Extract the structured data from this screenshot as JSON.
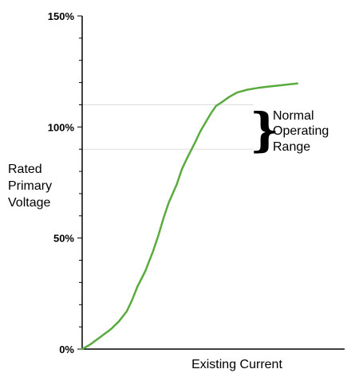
{
  "chart_data": {
    "type": "line",
    "title": "",
    "xlabel": "Existing Current",
    "ylabel_lines": [
      "Rated",
      "Primary",
      "Voltage"
    ],
    "ylim": [
      0,
      150
    ],
    "xlim": [
      0,
      100
    ],
    "y_ticks": [
      {
        "value": 0,
        "label": "0%"
      },
      {
        "value": 50,
        "label": "50%"
      },
      {
        "value": 100,
        "label": "100%"
      },
      {
        "value": 150,
        "label": "150%"
      }
    ],
    "y_minor_step": 10,
    "grid": false,
    "series": [
      {
        "color": "#5aab3e",
        "x": [
          0,
          3,
          7,
          11,
          14,
          17,
          19,
          21,
          24,
          27,
          29,
          31,
          33,
          36,
          38,
          40,
          43,
          45,
          47,
          49,
          51,
          53,
          56,
          59,
          63,
          67,
          71,
          75,
          79,
          82
        ],
        "y": [
          0,
          2,
          5.5,
          9,
          12.5,
          17,
          22,
          28,
          35,
          44,
          51,
          59,
          66,
          74,
          81,
          86,
          93,
          98,
          102,
          106,
          109.5,
          111,
          113.5,
          115.5,
          116.8,
          117.6,
          118.2,
          118.7,
          119.2,
          119.6
        ]
      }
    ],
    "reference_lines": [
      {
        "value": 110,
        "color": "#dddddd"
      },
      {
        "value": 90,
        "color": "#dddddd"
      }
    ],
    "annotation": {
      "brace": "}",
      "text_lines": [
        "Normal",
        "Operating",
        "Range"
      ],
      "range": [
        90,
        110
      ]
    }
  }
}
